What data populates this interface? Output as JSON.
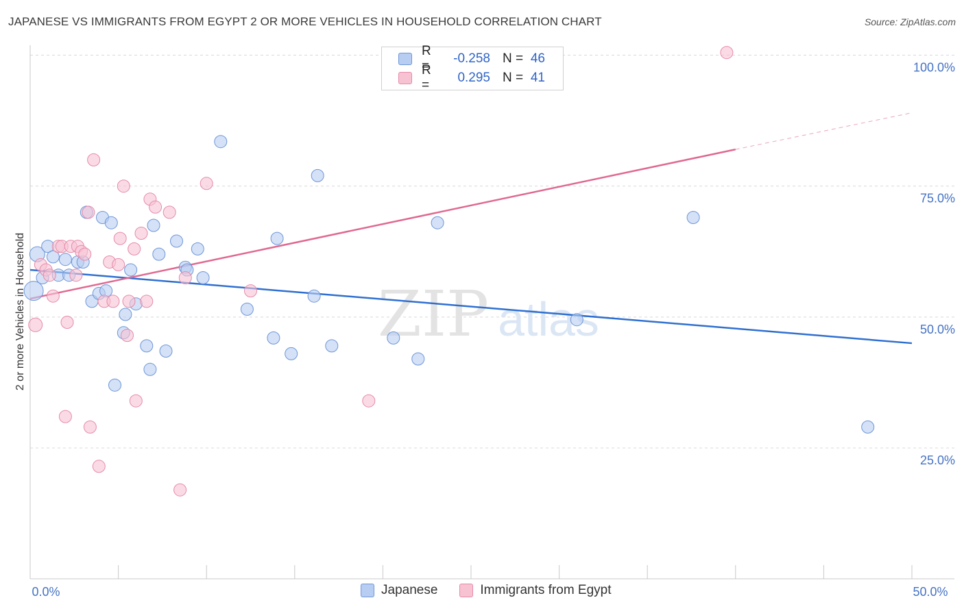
{
  "title": "JAPANESE VS IMMIGRANTS FROM EGYPT 2 OR MORE VEHICLES IN HOUSEHOLD CORRELATION CHART",
  "source": "Source: ZipAtlas.com",
  "watermark": {
    "zip": "ZIP",
    "atlas": "atlas"
  },
  "colors": {
    "blue_fill": "#b7cdf2",
    "blue_stroke": "#6d96d8",
    "blue_line": "#2f6fd0",
    "pink_fill": "#f7c3d3",
    "pink_stroke": "#e68aa8",
    "pink_line": "#e06890",
    "tick_text": "#4472c4",
    "grid": "#d8d8d8"
  },
  "legend": {
    "rows": [
      {
        "r_label": "R =",
        "r_value": "-0.258",
        "n_label": "N =",
        "n_value": "46"
      },
      {
        "r_label": "R =",
        "r_value": "0.295",
        "n_label": "N =",
        "n_value": "41"
      }
    ]
  },
  "bottom_legend": {
    "items": [
      "Japanese",
      "Immigrants from Egypt"
    ]
  },
  "chart_data": {
    "type": "scatter",
    "title": "JAPANESE VS IMMIGRANTS FROM EGYPT 2 OR MORE VEHICLES IN HOUSEHOLD CORRELATION CHART",
    "xlabel": "",
    "ylabel": "2 or more Vehicles in Household",
    "xlim": [
      0,
      50
    ],
    "ylim": [
      0,
      102
    ],
    "x_tick_labels": [
      "0.0%",
      "50.0%"
    ],
    "y_tick_values": [
      25,
      50,
      75,
      100
    ],
    "y_tick_labels": [
      "25.0%",
      "50.0%",
      "75.0%",
      "100.0%"
    ],
    "grid": true,
    "series": [
      {
        "name": "Japanese",
        "points": [
          [
            0.2,
            55,
            14
          ],
          [
            0.4,
            62,
            11
          ],
          [
            0.7,
            57.5,
            9
          ],
          [
            1.0,
            63.5,
            9
          ],
          [
            1.3,
            61.5,
            9
          ],
          [
            1.6,
            58,
            9
          ],
          [
            2.0,
            61,
            9
          ],
          [
            2.2,
            58,
            9
          ],
          [
            2.7,
            60.5,
            9
          ],
          [
            3.0,
            60.5,
            9
          ],
          [
            3.2,
            70,
            9
          ],
          [
            3.5,
            53,
            9
          ],
          [
            3.9,
            54.5,
            9
          ],
          [
            4.1,
            69,
            9
          ],
          [
            4.3,
            55,
            9
          ],
          [
            4.6,
            68,
            9
          ],
          [
            4.8,
            37,
            9
          ],
          [
            5.3,
            47,
            9
          ],
          [
            5.4,
            50.5,
            9
          ],
          [
            5.7,
            59,
            9
          ],
          [
            6.0,
            52.5,
            9
          ],
          [
            6.6,
            44.5,
            9
          ],
          [
            6.8,
            40,
            9
          ],
          [
            7.0,
            67.5,
            9
          ],
          [
            7.3,
            62,
            9
          ],
          [
            7.7,
            43.5,
            9
          ],
          [
            8.3,
            64.5,
            9
          ],
          [
            8.8,
            59.5,
            9
          ],
          [
            8.9,
            59,
            9
          ],
          [
            9.5,
            63,
            9
          ],
          [
            9.8,
            57.5,
            9
          ],
          [
            10.8,
            83.5,
            9
          ],
          [
            12.3,
            51.5,
            9
          ],
          [
            13.8,
            46,
            9
          ],
          [
            14.0,
            65,
            9
          ],
          [
            14.8,
            43,
            9
          ],
          [
            16.1,
            54,
            9
          ],
          [
            16.3,
            77,
            9
          ],
          [
            17.1,
            44.5,
            9
          ],
          [
            20.6,
            46,
            9
          ],
          [
            22.0,
            42,
            9
          ],
          [
            23.1,
            68,
            9
          ],
          [
            31.0,
            49.5,
            9
          ],
          [
            37.6,
            69,
            9
          ],
          [
            47.5,
            29,
            9
          ]
        ],
        "trend": {
          "x": [
            0,
            50
          ],
          "y": [
            59,
            45
          ]
        }
      },
      {
        "name": "Immigrants from Egypt",
        "points": [
          [
            0.3,
            48.5,
            10
          ],
          [
            0.6,
            60,
            9
          ],
          [
            0.9,
            59,
            9
          ],
          [
            1.1,
            58,
            9
          ],
          [
            1.3,
            54,
            9
          ],
          [
            1.6,
            63.5,
            9
          ],
          [
            1.8,
            63.5,
            9
          ],
          [
            2.0,
            31,
            9
          ],
          [
            2.1,
            49,
            9
          ],
          [
            2.3,
            63.5,
            9
          ],
          [
            2.6,
            58,
            9
          ],
          [
            2.7,
            63.5,
            9
          ],
          [
            2.9,
            62.5,
            9
          ],
          [
            3.1,
            62,
            9
          ],
          [
            3.3,
            70,
            9
          ],
          [
            3.4,
            29,
            9
          ],
          [
            3.6,
            80,
            9
          ],
          [
            3.9,
            21.5,
            9
          ],
          [
            4.2,
            53,
            9
          ],
          [
            4.5,
            60.5,
            9
          ],
          [
            4.7,
            53,
            9
          ],
          [
            5.0,
            60,
            9
          ],
          [
            5.1,
            65,
            9
          ],
          [
            5.3,
            75,
            9
          ],
          [
            5.5,
            46.5,
            9
          ],
          [
            5.6,
            53,
            9
          ],
          [
            5.9,
            63,
            9
          ],
          [
            6.0,
            34,
            9
          ],
          [
            6.3,
            66,
            9
          ],
          [
            6.6,
            53,
            9
          ],
          [
            6.8,
            72.5,
            9
          ],
          [
            7.1,
            71,
            9
          ],
          [
            7.9,
            70,
            9
          ],
          [
            8.5,
            17,
            9
          ],
          [
            8.8,
            57.5,
            9
          ],
          [
            10.0,
            75.5,
            9
          ],
          [
            12.5,
            55,
            9
          ],
          [
            19.2,
            34,
            9
          ],
          [
            39.5,
            100.5,
            9
          ]
        ],
        "trend": {
          "x": [
            0,
            40
          ],
          "y": [
            53.5,
            82
          ]
        },
        "trend_extension": {
          "x": [
            40,
            50
          ],
          "y": [
            82,
            89
          ]
        }
      }
    ]
  }
}
